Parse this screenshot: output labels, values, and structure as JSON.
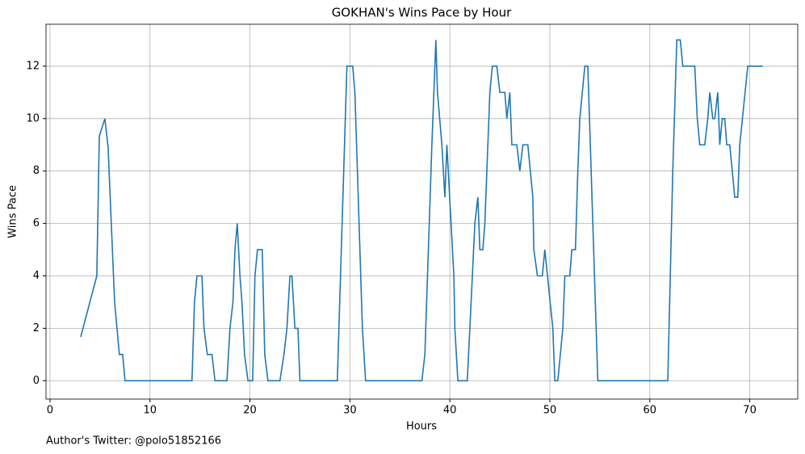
{
  "chart_data": {
    "type": "line",
    "title": "GOKHAN's Wins Pace by Hour",
    "xlabel": "Hours",
    "ylabel": "Wins Pace",
    "footer": "Author's Twitter: @polo51852166",
    "xlim": [
      -0.4,
      74.8
    ],
    "ylim": [
      -0.7,
      13.6
    ],
    "xticks": [
      0,
      10,
      20,
      30,
      40,
      50,
      60,
      70
    ],
    "yticks": [
      0,
      2,
      4,
      6,
      8,
      10,
      12
    ],
    "grid": true,
    "series": [
      {
        "color": "#1f77b4",
        "x": [
          3.07,
          4.68,
          4.93,
          5.49,
          5.81,
          6.46,
          6.94,
          7.27,
          7.5,
          14.2,
          14.45,
          14.7,
          15.2,
          15.4,
          15.74,
          16.2,
          16.5,
          17.7,
          18.0,
          18.3,
          18.5,
          18.73,
          19.0,
          19.2,
          19.46,
          19.8,
          20.27,
          20.5,
          20.75,
          21.23,
          21.48,
          21.8,
          23.0,
          23.4,
          23.7,
          24.0,
          24.2,
          24.5,
          24.8,
          25.0,
          28.74,
          29.7,
          30.28,
          30.5,
          31.25,
          31.57,
          37.2,
          37.5,
          38.2,
          38.6,
          38.76,
          39.2,
          39.5,
          39.7,
          40.4,
          40.5,
          40.8,
          41.74,
          42.0,
          42.5,
          42.8,
          43.0,
          43.3,
          43.5,
          44.0,
          44.25,
          44.7,
          45.0,
          45.5,
          45.7,
          46.0,
          46.2,
          46.7,
          47.0,
          47.3,
          47.8,
          48.3,
          48.4,
          48.76,
          49.25,
          49.5,
          50.3,
          50.5,
          50.8,
          51.3,
          51.5,
          52.0,
          52.2,
          52.56,
          52.8,
          53.0,
          53.5,
          53.8,
          54.8,
          61.8,
          62.3,
          62.7,
          63.05,
          63.3,
          64.5,
          64.75,
          65.0,
          65.5,
          65.8,
          66.0,
          66.3,
          66.5,
          66.8,
          67.0,
          67.25,
          67.5,
          67.7,
          68.0,
          68.5,
          68.8,
          69.0,
          69.8,
          71.3
        ],
        "values": [
          1.67,
          4,
          9.33,
          10,
          8.9,
          3,
          1,
          1,
          0,
          0,
          3,
          4,
          4,
          2,
          1,
          1,
          0,
          0,
          2,
          3,
          5,
          6,
          4,
          3,
          1,
          0,
          0,
          4,
          5,
          5,
          1,
          0,
          0,
          1,
          2,
          4,
          4,
          2,
          2,
          0,
          0,
          12,
          12,
          11,
          2,
          0,
          0,
          1,
          9,
          13,
          11,
          9,
          7,
          9,
          4,
          2,
          0,
          0,
          2,
          6,
          7,
          5,
          5,
          6,
          11,
          12,
          12,
          11,
          11,
          10,
          11,
          9,
          9,
          8,
          9,
          9,
          7,
          5,
          4,
          4,
          5,
          2,
          0,
          0,
          2,
          4,
          4,
          5,
          5,
          8,
          10,
          12,
          12,
          0,
          0,
          8,
          13,
          13,
          12,
          12,
          10,
          9,
          9,
          10,
          11,
          10,
          10,
          11,
          9,
          10,
          10,
          9,
          9,
          7,
          7,
          9,
          12,
          12
        ]
      }
    ]
  }
}
